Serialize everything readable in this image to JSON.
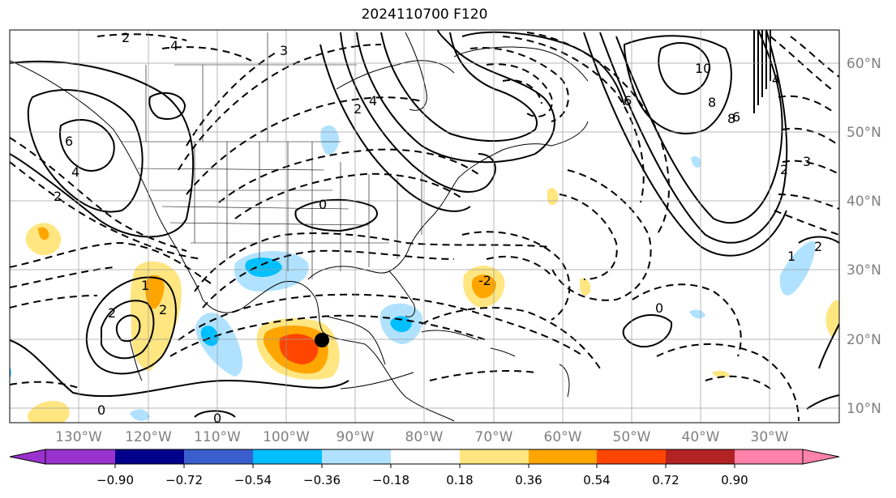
{
  "title": "2024110700 F120",
  "longitude_labels": [
    "130°W",
    "120°W",
    "110°W",
    "100°W",
    "90°W",
    "80°W",
    "70°W",
    "60°W",
    "50°W",
    "40°W",
    "30°W"
  ],
  "latitude_labels": [
    "60°N",
    "50°N",
    "40°N",
    "30°N",
    "20°N",
    "10°N"
  ],
  "colorbar": {
    "tick_labels": [
      "−0.90",
      "−0.72",
      "−0.54",
      "−0.36",
      "−0.18",
      "0.18",
      "0.36",
      "0.54",
      "0.72",
      "0.90"
    ],
    "colors": [
      "#9a32cd",
      "#00008b",
      "#3a5fcd",
      "#00bfff",
      "#b0e2ff",
      "#ffffff",
      "#ffe680",
      "#ffa500",
      "#ff4500",
      "#b22222",
      "#ff82ab"
    ]
  },
  "contour_labels": [
    "4",
    "2",
    "3",
    "6",
    "4",
    "2",
    "1",
    "8",
    "10",
    "8",
    "6",
    "4",
    "2",
    "0",
    "-2",
    "3",
    "4",
    "1",
    "2",
    "0",
    "6",
    "2",
    "2",
    "0",
    "0",
    "2"
  ],
  "marker": "storm-center-dot"
}
